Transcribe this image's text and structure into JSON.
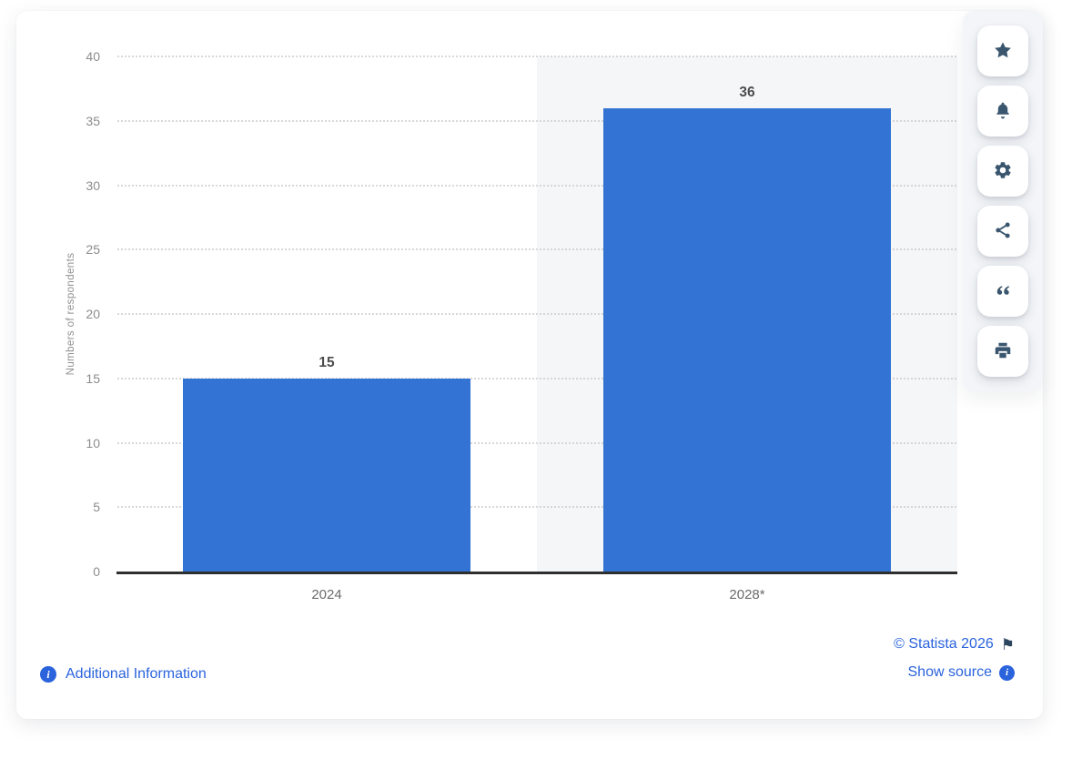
{
  "chart_data": {
    "type": "bar",
    "categories": [
      "2024",
      "2028*"
    ],
    "values": [
      15,
      36
    ],
    "value_labels": [
      "15",
      "36"
    ],
    "title": "",
    "xlabel": "",
    "ylabel": "Numbers of respondents",
    "ylim": [
      0,
      40
    ],
    "ytick_step": 5,
    "ytick_labels": [
      "0",
      "5",
      "10",
      "15",
      "20",
      "25",
      "30",
      "35",
      "40"
    ],
    "grid": "dotted-horizontal",
    "legend": "none",
    "bar_color": "#3373d4",
    "highlighted_category_index": 1,
    "highlight_band_color": "#f5f6f8"
  },
  "footer": {
    "additional_information_label": "Additional Information",
    "copyright_label": "© Statista 2026",
    "show_source_label": "Show source"
  },
  "toolbar": {
    "buttons": [
      {
        "name": "favorite",
        "icon": "star-icon"
      },
      {
        "name": "alerts",
        "icon": "bell-icon"
      },
      {
        "name": "settings",
        "icon": "gear-icon"
      },
      {
        "name": "share",
        "icon": "share-icon"
      },
      {
        "name": "cite",
        "icon": "quote-icon"
      },
      {
        "name": "print",
        "icon": "printer-icon"
      }
    ]
  },
  "colors": {
    "bar": "#3373d4",
    "link": "#2a63dc",
    "toolbar_icon": "#3a566e",
    "highlight_band": "#f5f6f8",
    "axis_line": "#2f2f2f",
    "tick_label": "#8c8c8c",
    "value_label": "#4d4d4d",
    "category_label": "#6b6b6b"
  }
}
